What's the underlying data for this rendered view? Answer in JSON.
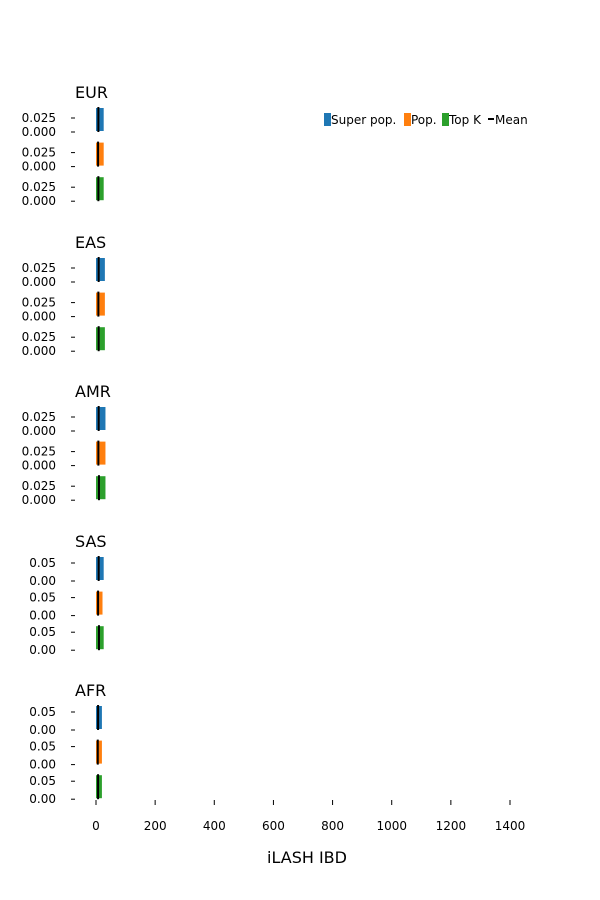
{
  "chart_data": {
    "type": "bar",
    "orientation": "horizontal-small-multiples",
    "xlabel": "iLASH IBD",
    "xlim": [
      -70,
      1480
    ],
    "xticks": [
      0,
      200,
      400,
      600,
      800,
      1000,
      1200,
      1400
    ],
    "xtick_labels": [
      "0",
      "200",
      "400",
      "600",
      "800",
      "1000",
      "1200",
      "1400"
    ],
    "legend": {
      "placement": "top-right",
      "entries": [
        {
          "label": "Super pop.",
          "color": "#1f77b4",
          "kind": "bar"
        },
        {
          "label": "Pop.",
          "color": "#ff7f0e",
          "kind": "bar"
        },
        {
          "label": "Top K",
          "color": "#2ca02c",
          "kind": "bar"
        },
        {
          "label": "Mean",
          "color": "#000000",
          "kind": "line"
        }
      ]
    },
    "series_colors": {
      "Super pop.": "#1f77b4",
      "Pop.": "#ff7f0e",
      "Top K": "#2ca02c"
    },
    "panels": [
      {
        "title": "EUR",
        "ytick_labels": [
          "0.000",
          "0.025"
        ],
        "ylim": [
          0,
          0.03
        ],
        "rows": [
          {
            "series": "Super pop.",
            "max_ibd": 26,
            "mean": 8
          },
          {
            "series": "Pop.",
            "max_ibd": 26,
            "mean": 7
          },
          {
            "series": "Top K",
            "max_ibd": 26,
            "mean": 8
          }
        ]
      },
      {
        "title": "EAS",
        "ytick_labels": [
          "0.000",
          "0.025"
        ],
        "ylim": [
          0,
          0.03
        ],
        "rows": [
          {
            "series": "Super pop.",
            "max_ibd": 30,
            "mean": 9
          },
          {
            "series": "Pop.",
            "max_ibd": 30,
            "mean": 8
          },
          {
            "series": "Top K",
            "max_ibd": 30,
            "mean": 9
          }
        ]
      },
      {
        "title": "AMR",
        "ytick_labels": [
          "0.000",
          "0.025"
        ],
        "ylim": [
          0,
          0.03
        ],
        "rows": [
          {
            "series": "Super pop.",
            "max_ibd": 32,
            "mean": 9
          },
          {
            "series": "Pop.",
            "max_ibd": 32,
            "mean": 8
          },
          {
            "series": "Top K",
            "max_ibd": 32,
            "mean": 10
          }
        ]
      },
      {
        "title": "SAS",
        "ytick_labels": [
          "0.00",
          "0.05"
        ],
        "ylim": [
          0,
          0.06
        ],
        "rows": [
          {
            "series": "Super pop.",
            "max_ibd": 26,
            "mean": 9
          },
          {
            "series": "Pop.",
            "max_ibd": 22,
            "mean": 7
          },
          {
            "series": "Top K",
            "max_ibd": 26,
            "mean": 10
          }
        ]
      },
      {
        "title": "AFR",
        "ytick_labels": [
          "0.00",
          "0.05"
        ],
        "ylim": [
          0,
          0.06
        ],
        "rows": [
          {
            "series": "Super pop.",
            "max_ibd": 20,
            "mean": 7
          },
          {
            "series": "Pop.",
            "max_ibd": 20,
            "mean": 6
          },
          {
            "series": "Top K",
            "max_ibd": 20,
            "mean": 7
          }
        ]
      }
    ]
  }
}
